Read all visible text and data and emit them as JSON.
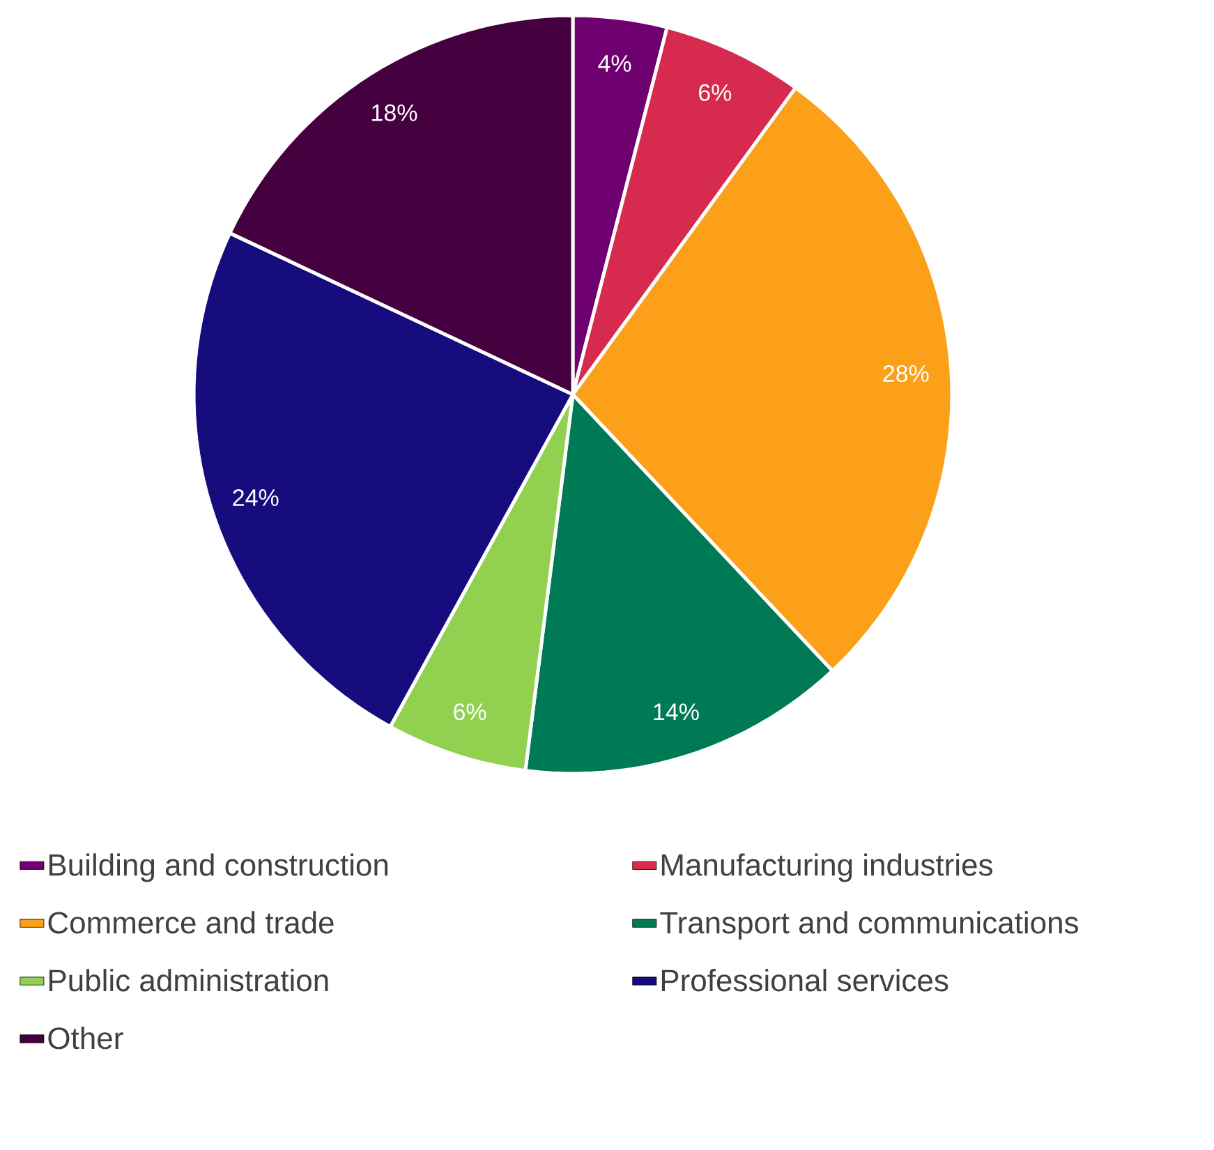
{
  "chart_data": {
    "type": "pie",
    "categories": [
      "Building and construction",
      "Manufacturing industries",
      "Commerce and trade",
      "Transport and communications",
      "Public administration",
      "Professional services",
      "Other"
    ],
    "values": [
      4,
      6,
      28,
      14,
      6,
      24,
      18
    ],
    "value_labels": [
      "4%",
      "6%",
      "28%",
      "14%",
      "6%",
      "24%",
      "18%"
    ],
    "colors": [
      "#6f0070",
      "#d62a4e",
      "#fba018",
      "#007a55",
      "#92d050",
      "#170c7e",
      "#450040"
    ],
    "legend": "bottom"
  }
}
